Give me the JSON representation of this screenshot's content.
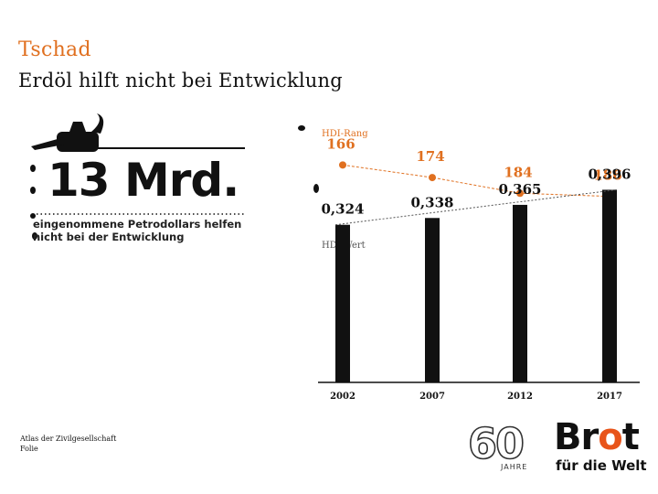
{
  "header": {
    "country": "Tschad",
    "title": "Erdöl hilft nicht bei Entwicklung"
  },
  "highlight": {
    "number": "13 Mrd.",
    "caption_line1": "eingenommene Petrodollars helfen",
    "caption_line2": "nicht bei der Entwicklung"
  },
  "footer": {
    "source_line1": "Atlas der Zivilgesellschaft",
    "source_line2": "Folie"
  },
  "logo": {
    "jubilee_number": "60",
    "jubilee_label": "JAHRE",
    "brand_pre": "Br",
    "brand_o": "o",
    "brand_post": "t",
    "brand_tagline": "für die Welt"
  },
  "colors": {
    "accent": "#e07020",
    "bar": "#111111",
    "text": "#111111"
  },
  "chart_data": [
    {
      "type": "line",
      "title": "HDI-Rang",
      "x": [
        "2002",
        "2007",
        "2012",
        "2017"
      ],
      "values": [
        166,
        174,
        184,
        186
      ],
      "labels": [
        "166",
        "174",
        "184",
        "186"
      ],
      "ylim": [
        160,
        192
      ],
      "inverted": true
    },
    {
      "type": "bar",
      "title": "HDI-Wert",
      "categories": [
        "2002",
        "2007",
        "2012",
        "2017"
      ],
      "values": [
        0.324,
        0.338,
        0.365,
        0.396
      ],
      "labels": [
        "0,324",
        "0,338",
        "0,365",
        "0,396"
      ],
      "ylim": [
        0,
        0.41
      ]
    }
  ]
}
